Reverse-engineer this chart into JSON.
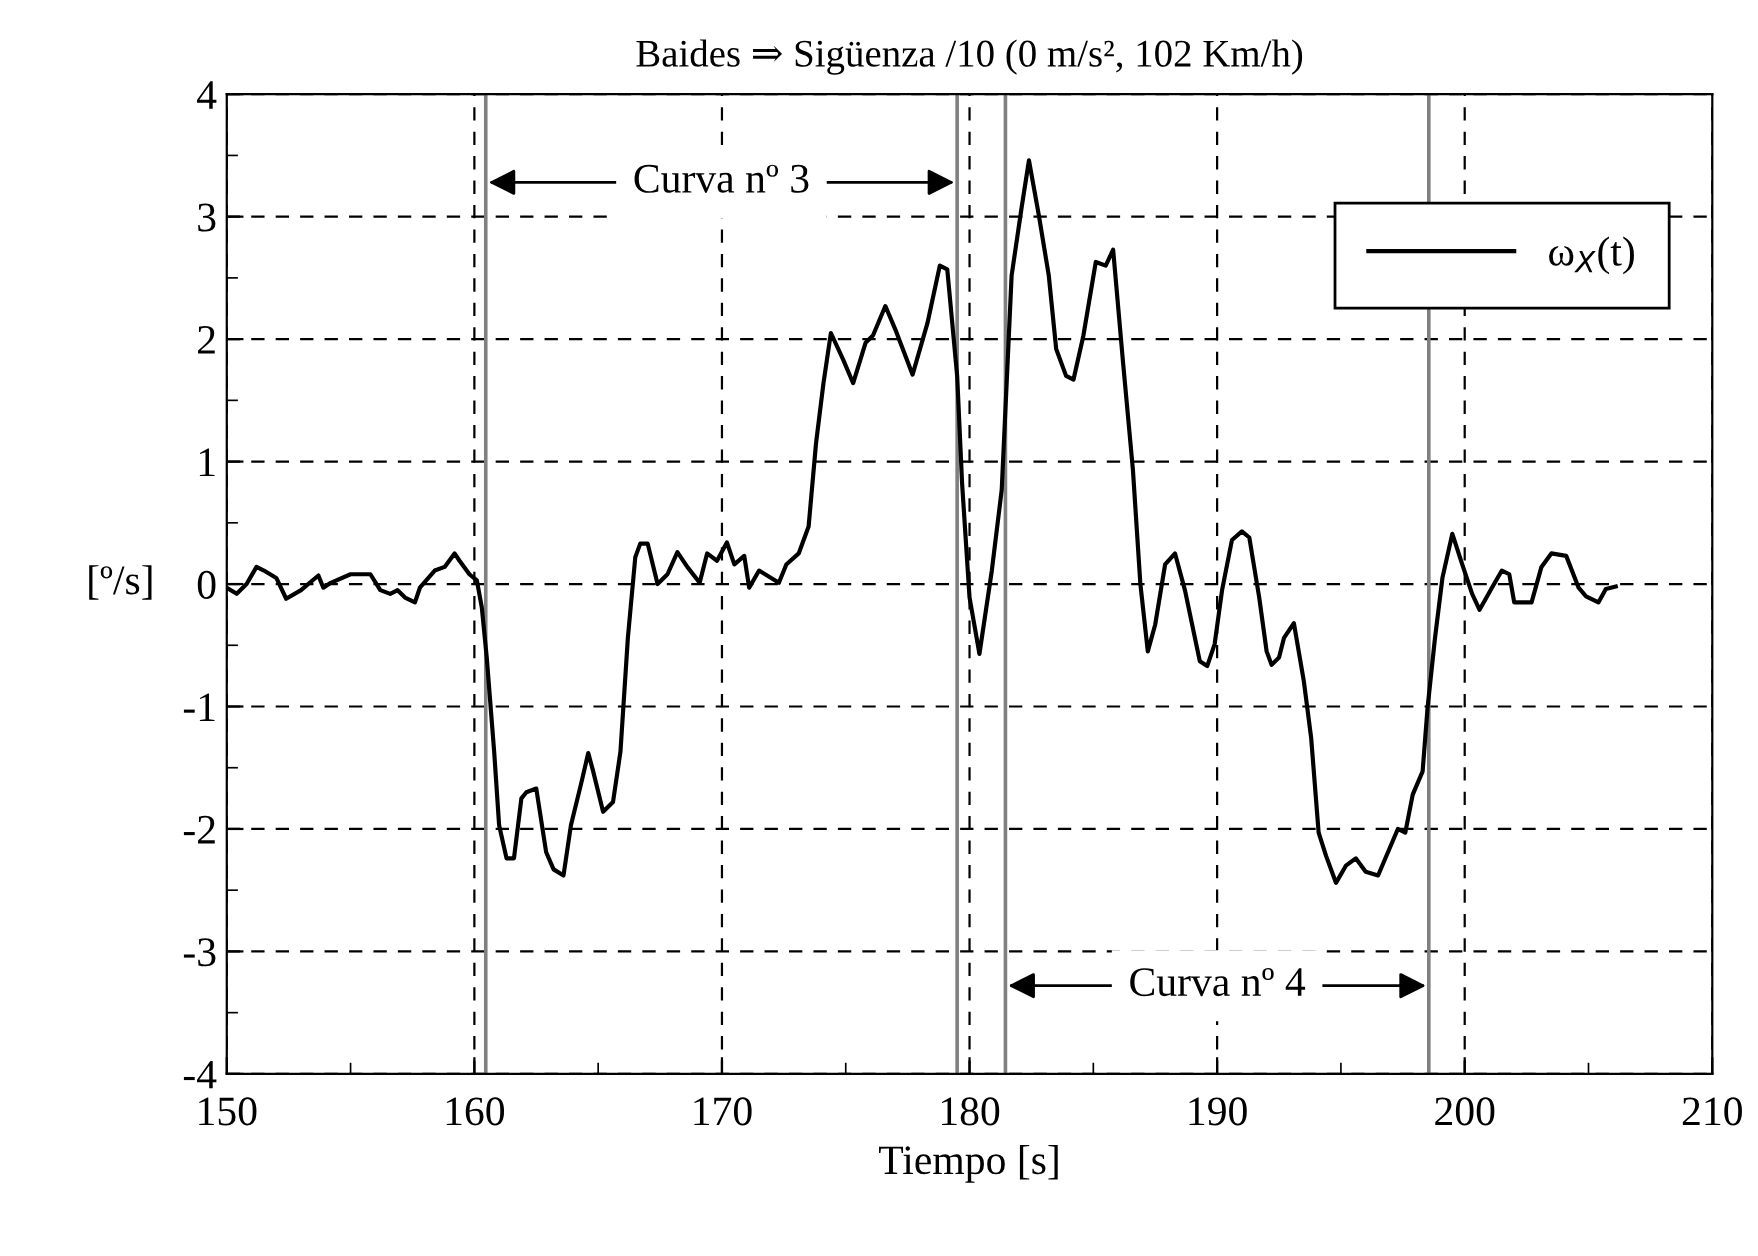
{
  "chart_data": {
    "type": "line",
    "title": "Baides ⇒ Sigüenza /10 (0 m/s², 102 Km/h)",
    "xlabel": "Tiempo [s]",
    "ylabel": "[º/s]",
    "xlim": [
      150,
      210
    ],
    "xticks": [
      150,
      160,
      170,
      180,
      190,
      200,
      210
    ],
    "ylim": [
      -4,
      4
    ],
    "yticks": [
      -4,
      -3,
      -2,
      -1,
      0,
      1,
      2,
      3,
      4
    ],
    "grid": true,
    "legend": "top right",
    "line_style": "solid",
    "marker": "none",
    "ref_lines": [
      {
        "axis": "x",
        "value": 160.46,
        "color": "#808080"
      },
      {
        "axis": "x",
        "value": 179.5,
        "color": "#808080"
      },
      {
        "axis": "x",
        "value": 181.45,
        "color": "#808080"
      },
      {
        "axis": "x",
        "value": 198.55,
        "color": "#808080"
      }
    ],
    "annotations": [
      "Curva nº 3",
      "Curva nº 4"
    ],
    "series": [
      {
        "name": "ω$_{X}$(t)",
        "color": "#000000",
        "x": [
          150.0,
          150.4,
          150.8,
          151.2,
          151.5,
          152.0,
          152.4,
          153.0,
          153.7,
          153.9,
          154.2,
          155.0,
          155.8,
          156.2,
          156.6,
          156.9,
          157.2,
          157.6,
          157.8,
          158.4,
          158.8,
          159.2,
          159.4,
          159.8,
          160.1,
          160.3,
          160.5,
          160.8,
          161.0,
          161.3,
          161.6,
          161.9,
          162.1,
          162.5,
          162.9,
          163.2,
          163.6,
          163.9,
          164.3,
          164.6,
          164.8,
          165.2,
          165.6,
          165.9,
          166.2,
          166.5,
          166.7,
          167.0,
          167.4,
          167.8,
          168.2,
          168.6,
          169.1,
          169.4,
          169.8,
          170.2,
          170.5,
          170.9,
          171.1,
          171.5,
          172.3,
          172.6,
          173.1,
          173.5,
          173.8,
          174.1,
          174.4,
          174.9,
          175.3,
          175.8,
          176.1,
          176.6,
          177.0,
          177.7,
          178.3,
          178.8,
          179.1,
          179.5,
          179.7,
          180.0,
          180.4,
          180.9,
          181.3,
          181.7,
          182.1,
          182.4,
          182.8,
          183.2,
          183.5,
          183.9,
          184.2,
          184.6,
          185.1,
          185.5,
          185.8,
          186.2,
          186.6,
          186.9,
          187.2,
          187.5,
          187.9,
          188.3,
          188.7,
          189.3,
          189.6,
          189.9,
          190.2,
          190.6,
          191.0,
          191.3,
          191.7,
          192.0,
          192.2,
          192.5,
          192.7,
          193.1,
          193.5,
          193.8,
          194.1,
          194.4,
          194.8,
          195.2,
          195.6,
          196.0,
          196.5,
          196.9,
          197.3,
          197.6,
          197.9,
          198.3,
          198.5,
          198.8,
          199.1,
          199.5,
          199.9,
          200.3,
          200.6,
          201.1,
          201.5,
          201.8,
          202.0,
          202.7,
          203.1,
          203.5,
          204.1,
          204.6,
          204.9,
          205.4,
          205.7,
          206.1
        ],
        "values": [
          -0.03,
          -0.08,
          0.0,
          0.14,
          0.11,
          0.05,
          -0.12,
          -0.05,
          0.07,
          -0.03,
          0.01,
          0.08,
          0.08,
          -0.05,
          -0.08,
          -0.05,
          -0.11,
          -0.15,
          -0.03,
          0.11,
          0.14,
          0.25,
          0.19,
          0.08,
          0.03,
          -0.19,
          -0.6,
          -1.37,
          -1.97,
          -2.24,
          -2.24,
          -1.75,
          -1.7,
          -1.67,
          -2.19,
          -2.33,
          -2.38,
          -1.97,
          -1.64,
          -1.38,
          -1.53,
          -1.86,
          -1.78,
          -1.37,
          -0.44,
          0.22,
          0.33,
          0.33,
          0.0,
          0.08,
          0.26,
          0.14,
          0.01,
          0.25,
          0.19,
          0.34,
          0.16,
          0.23,
          -0.03,
          0.11,
          0.01,
          0.16,
          0.25,
          0.47,
          1.15,
          1.64,
          2.05,
          1.83,
          1.64,
          1.97,
          2.03,
          2.27,
          2.08,
          1.71,
          2.13,
          2.6,
          2.57,
          1.7,
          0.82,
          -0.11,
          -0.57,
          0.11,
          0.77,
          2.52,
          3.07,
          3.46,
          3.01,
          2.52,
          1.92,
          1.7,
          1.67,
          2.03,
          2.63,
          2.6,
          2.73,
          1.81,
          0.93,
          0.0,
          -0.55,
          -0.33,
          0.16,
          0.25,
          -0.05,
          -0.63,
          -0.67,
          -0.49,
          -0.05,
          0.36,
          0.43,
          0.38,
          -0.11,
          -0.55,
          -0.66,
          -0.6,
          -0.44,
          -0.32,
          -0.79,
          -1.26,
          -2.03,
          -2.22,
          -2.44,
          -2.3,
          -2.24,
          -2.35,
          -2.38,
          -2.19,
          -2.0,
          -2.03,
          -1.72,
          -1.53,
          -1.01,
          -0.44,
          0.05,
          0.41,
          0.16,
          -0.08,
          -0.21,
          -0.03,
          0.11,
          0.08,
          -0.15,
          -0.15,
          0.14,
          0.25,
          0.23,
          -0.03,
          -0.1,
          -0.15,
          -0.04,
          -0.02
        ]
      }
    ]
  }
}
